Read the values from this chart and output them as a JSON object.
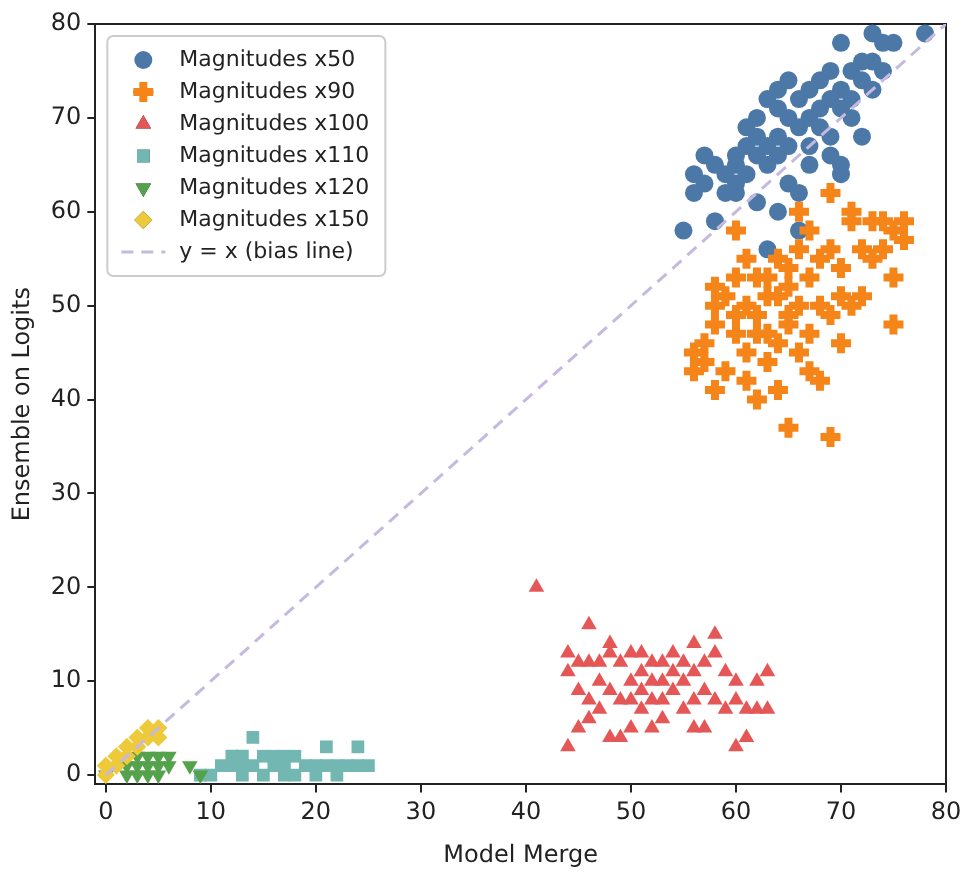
{
  "chart_data": {
    "type": "scatter",
    "xlabel": "Model Merge",
    "ylabel": "Ensemble on Logits",
    "xlim": [
      -1,
      80
    ],
    "ylim": [
      -1,
      80
    ],
    "xticks": [
      0,
      10,
      20,
      30,
      40,
      50,
      60,
      70,
      80
    ],
    "yticks": [
      0,
      10,
      20,
      30,
      40,
      50,
      60,
      70,
      80
    ],
    "grid": false,
    "legend": "top left",
    "series": [
      {
        "name": "Magnitudes x50",
        "color": "#4c78a8",
        "marker": "circle",
        "x": [
          55,
          56,
          56,
          57,
          57,
          58,
          58,
          59,
          59,
          60,
          60,
          60,
          61,
          61,
          61,
          62,
          62,
          62,
          63,
          63,
          63,
          63,
          64,
          64,
          64,
          64,
          64,
          65,
          65,
          65,
          65,
          66,
          66,
          66,
          66,
          67,
          67,
          67,
          68,
          68,
          68,
          69,
          69,
          69,
          70,
          70,
          70,
          70,
          70,
          71,
          71,
          71,
          72,
          72,
          72,
          73,
          73,
          73,
          74,
          74,
          75,
          78,
          69,
          62,
          60,
          67
        ],
        "values": [
          58,
          62,
          64,
          63,
          66,
          59,
          65,
          64,
          62,
          66,
          63,
          65,
          67,
          69,
          64,
          61,
          66,
          70,
          67,
          65,
          72,
          56,
          68,
          71,
          73,
          60,
          66,
          70,
          74,
          67,
          63,
          69,
          72,
          62,
          58,
          73,
          70,
          67,
          71,
          74,
          69,
          72,
          75,
          68,
          73,
          78,
          71,
          65,
          64,
          75,
          72,
          70,
          76,
          74,
          68,
          76,
          79,
          73,
          78,
          75,
          78,
          79,
          66,
          68,
          62,
          65
        ]
      },
      {
        "name": "Magnitudes x90",
        "color": "#f58518",
        "marker": "cross",
        "x": [
          56,
          56,
          57,
          57,
          58,
          58,
          58,
          58,
          59,
          60,
          60,
          60,
          60,
          61,
          61,
          61,
          61,
          62,
          62,
          62,
          63,
          63,
          63,
          63,
          64,
          64,
          64,
          64,
          65,
          65,
          65,
          65,
          66,
          66,
          66,
          66,
          67,
          67,
          67,
          67,
          68,
          68,
          68,
          69,
          69,
          69,
          69,
          70,
          70,
          70,
          71,
          71,
          71,
          72,
          72,
          73,
          73,
          74,
          74,
          75,
          75,
          75,
          76,
          76,
          65,
          62,
          59
        ],
        "values": [
          45,
          43,
          46,
          44,
          50,
          48,
          41,
          52,
          43,
          49,
          47,
          53,
          58,
          55,
          50,
          45,
          42,
          49,
          47,
          40,
          51,
          44,
          53,
          47,
          51,
          46,
          41,
          55,
          48,
          52,
          37,
          54,
          50,
          56,
          45,
          60,
          53,
          47,
          43,
          58,
          55,
          50,
          42,
          62,
          49,
          36,
          56,
          54,
          51,
          46,
          59,
          60,
          50,
          56,
          51,
          59,
          55,
          59,
          56,
          53,
          48,
          58,
          59,
          57,
          49,
          53,
          51
        ]
      },
      {
        "name": "Magnitudes x100",
        "color": "#e45756",
        "marker": "triangle",
        "x": [
          41,
          44,
          44,
          44,
          45,
          45,
          46,
          46,
          46,
          46,
          47,
          47,
          47,
          48,
          48,
          48,
          48,
          49,
          49,
          49,
          50,
          50,
          50,
          51,
          51,
          51,
          51,
          52,
          52,
          52,
          52,
          53,
          53,
          53,
          54,
          54,
          54,
          55,
          55,
          55,
          56,
          56,
          56,
          56,
          57,
          57,
          57,
          58,
          58,
          58,
          59,
          59,
          60,
          60,
          60,
          61,
          61,
          62,
          62,
          63,
          63,
          50,
          53,
          45
        ],
        "values": [
          20,
          3,
          11,
          13,
          5,
          12,
          6,
          8,
          12,
          16,
          7,
          10,
          12,
          4,
          9,
          13,
          14,
          4,
          8,
          12,
          5,
          10,
          13,
          7,
          9,
          11,
          13,
          5,
          8,
          10,
          12,
          6,
          8,
          10,
          9,
          11,
          13,
          7,
          10,
          12,
          5,
          8,
          11,
          14,
          5,
          9,
          12,
          8,
          13,
          15,
          7,
          11,
          3,
          8,
          10,
          4,
          7,
          7,
          10,
          7,
          11,
          8,
          12,
          9
        ]
      },
      {
        "name": "Magnitudes x110",
        "color": "#72b7b2",
        "marker": "square",
        "x": [
          9,
          10,
          11,
          12,
          12,
          13,
          13,
          13,
          14,
          14,
          15,
          15,
          16,
          16,
          17,
          17,
          17,
          18,
          18,
          19,
          20,
          20,
          21,
          21,
          22,
          22,
          23,
          24,
          24,
          25
        ],
        "values": [
          0,
          0,
          1,
          1,
          2,
          0,
          1,
          2,
          4,
          1,
          0,
          2,
          1,
          2,
          0,
          1,
          2,
          2,
          0,
          1,
          0,
          1,
          3,
          1,
          0,
          1,
          1,
          3,
          1,
          1
        ]
      },
      {
        "name": "Magnitudes x120",
        "color": "#54a24b",
        "marker": "triangle-down",
        "x": [
          0,
          2,
          2,
          3,
          3,
          4,
          4,
          4,
          5,
          5,
          5,
          6,
          6,
          8,
          9,
          3
        ],
        "values": [
          0,
          0,
          1,
          0,
          1,
          0,
          1,
          2,
          0,
          1,
          2,
          1,
          2,
          1,
          0,
          2
        ]
      },
      {
        "name": "Magnitudes x150",
        "color": "#eeca3b",
        "marker": "diamond",
        "x": [
          0,
          0,
          1,
          1,
          2,
          2,
          3,
          3,
          4,
          4,
          5,
          5
        ],
        "values": [
          0,
          1,
          1,
          2,
          2,
          3,
          3,
          4,
          4,
          5,
          5,
          4
        ]
      },
      {
        "name": "y = x (bias line)",
        "type": "line",
        "color": "#c5b9e0",
        "line_style": "dashed",
        "marker": "none",
        "x": [
          0,
          80
        ],
        "values": [
          0,
          80
        ]
      }
    ]
  }
}
